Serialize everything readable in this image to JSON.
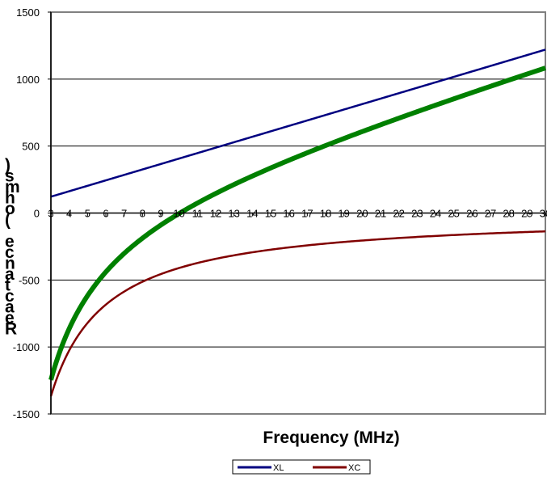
{
  "chart_data": {
    "type": "line",
    "xlabel": "Frequency (MHz)",
    "ylabel": "Reactance (ohms)",
    "ylim": [
      -1500,
      1500
    ],
    "xlim": [
      3,
      30
    ],
    "yticks": [
      "-1500",
      "-1000",
      "-500",
      "0",
      "500",
      "1000",
      "1500"
    ],
    "x": [
      3,
      4,
      5,
      6,
      7,
      8,
      9,
      10,
      11,
      12,
      13,
      14,
      15,
      16,
      17,
      18,
      19,
      20,
      21,
      22,
      23,
      24,
      25,
      26,
      27,
      28,
      29,
      30
    ],
    "x_tick_labels": [
      "3",
      "4",
      "5",
      "6",
      "7",
      "8",
      "9",
      "10",
      "11",
      "12",
      "13",
      "14",
      "15",
      "16",
      "17",
      "18",
      "19",
      "20",
      "21",
      "22",
      "23",
      "24",
      "25",
      "26",
      "27",
      "28",
      "29",
      "30"
    ],
    "series": [
      {
        "name": "XL",
        "color": "#000080",
        "values": [
          122,
          163,
          204,
          245,
          286,
          327,
          368,
          408,
          449,
          490,
          531,
          572,
          613,
          654,
          694,
          735,
          776,
          817,
          858,
          899,
          940,
          980,
          1021,
          1062,
          1103,
          1144,
          1185,
          1226
        ]
      },
      {
        "name": "XC",
        "color": "#800000",
        "values": [
          -1368,
          -1026,
          -821,
          -684,
          -586,
          -513,
          -456,
          -410,
          -373,
          -342,
          -316,
          -293,
          -274,
          -257,
          -241,
          -228,
          -216,
          -205,
          -195,
          -187,
          -178,
          -171,
          -164,
          -158,
          -152,
          -147,
          -141,
          -137
        ]
      },
      {
        "color": "#008000",
        "values": [
          -1246,
          -863,
          -617,
          -439,
          -300,
          -186,
          -88,
          -2,
          76,
          148,
          215,
          279,
          339,
          397,
          453,
          507,
          560,
          612,
          663,
          712,
          762,
          809,
          857,
          904,
          951,
          997,
          1044,
          1089
        ]
      }
    ],
    "grid": true,
    "legend": "bottom-center"
  }
}
